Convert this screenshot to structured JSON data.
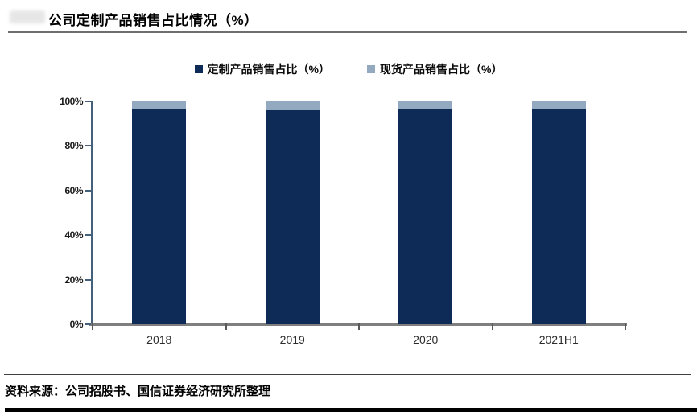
{
  "page": {
    "title": "公司定制产品销售占比情况（%）",
    "source_note": "资料来源：公司招股书、国信证券经济研究所整理"
  },
  "colors": {
    "series_primary": "#0e2a56",
    "series_secondary": "#93a9c0",
    "y_axis_line": "#44607a",
    "x_axis_line": "#7f7f7f",
    "tick_mark": "#595959",
    "title_rule": "#6e6e6e",
    "footer_rule": "#404040",
    "bottom_bar": "#000000"
  },
  "chart_data": {
    "type": "bar",
    "stacked": true,
    "title": "公司定制产品销售占比情况（%）",
    "categories": [
      "2018",
      "2019",
      "2020",
      "2021H1"
    ],
    "series": [
      {
        "name": "定制产品销售占比（%）",
        "values": [
          96.4,
          95.9,
          96.9,
          96.4
        ],
        "color": "#0e2a56"
      },
      {
        "name": "现货产品销售占比（%）",
        "values": [
          3.6,
          4.1,
          3.1,
          3.6
        ],
        "color": "#93a9c0"
      }
    ],
    "xlabel": "",
    "ylabel": "",
    "ylim": [
      0,
      100
    ],
    "y_ticks": [
      0,
      20,
      40,
      60,
      80,
      100
    ],
    "y_tick_labels": [
      "0%",
      "20%",
      "40%",
      "60%",
      "80%",
      "100%"
    ],
    "legend_position": "top-center",
    "grid": false
  }
}
